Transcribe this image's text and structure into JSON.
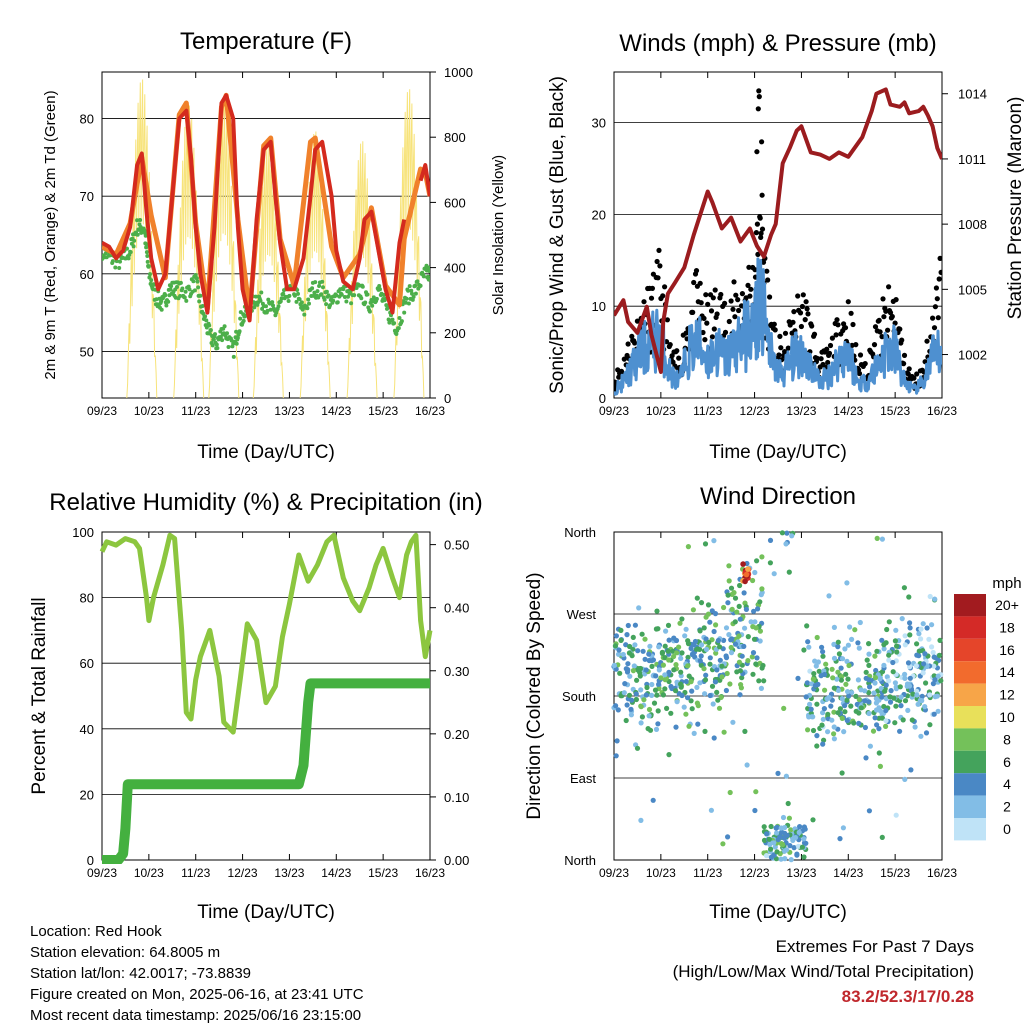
{
  "panels": {
    "temperature": {
      "title": "Temperature (F)",
      "xlabel": "Time (Day/UTC)",
      "ylabel_left": "2m & 9m T (Red, Orange) & 2m Td (Green)",
      "ylabel_right": "Solar Insolation (Yellow)"
    },
    "winds": {
      "title": "Winds (mph) & Pressure (mb)",
      "xlabel": "Time (Day/UTC)",
      "ylabel_left": "Sonic/Prop Wind & Gust (Blue, Black)",
      "ylabel_right": "Station Pressure (Maroon)"
    },
    "humidity": {
      "title": "Relative Humidity (%) & Precipitation (in)",
      "xlabel": "Time (Day/UTC)",
      "ylabel_left": "Percent & Total Rainfall"
    },
    "direction": {
      "title": "Wind Direction",
      "xlabel": "Time (Day/UTC)",
      "ylabel_left": "Direction (Colored By Speed)",
      "legend_title": "mph"
    }
  },
  "footer": {
    "location": "Location: Red Hook",
    "elevation": "Station elevation: 64.8005 m",
    "latlon": "Station lat/lon: 42.0017; -73.8839",
    "created": "Figure created on Mon, 2025-06-16, at 23:41 UTC",
    "recent": "Most recent data timestamp: 2025/06/16 23:15:00",
    "extremes_title": "Extremes For Past 7 Days",
    "extremes_sub": "(High/Low/Max Wind/Total Precipitation)",
    "extremes_values": "83.2/52.3/17/0.28"
  },
  "chart_data": [
    {
      "id": "temperature",
      "type": "line",
      "title": "Temperature (F)",
      "xlabel": "Time (Day/UTC)",
      "ylabel": "2m & 9m T (Red, Orange) & 2m Td (Green)",
      "y2label": "Solar Insolation (Yellow)",
      "x_ticks": [
        "09/23",
        "10/23",
        "11/23",
        "12/23",
        "13/23",
        "14/23",
        "15/23",
        "16/23"
      ],
      "x_range_days": [
        0,
        7
      ],
      "ylim": [
        44,
        86
      ],
      "y_ticks": [
        50,
        60,
        70,
        80
      ],
      "y2lim": [
        0,
        1000
      ],
      "y2_ticks": [
        0,
        200,
        400,
        600,
        800,
        1000
      ],
      "grid": "horizontal",
      "series": [
        {
          "name": "2m T",
          "color": "#d42a1e",
          "x": [
            0,
            0.15,
            0.3,
            0.45,
            0.6,
            0.75,
            0.85,
            0.95,
            1.05,
            1.2,
            1.35,
            1.5,
            1.65,
            1.8,
            1.9,
            2.0,
            2.1,
            2.25,
            2.4,
            2.55,
            2.65,
            2.8,
            2.9,
            3.0,
            3.15,
            3.3,
            3.45,
            3.6,
            3.7,
            3.8,
            3.95,
            4.1,
            4.3,
            4.45,
            4.55,
            4.7,
            4.9,
            5.0,
            5.15,
            5.35,
            5.5,
            5.6,
            5.75,
            5.9,
            6.05,
            6.2,
            6.35,
            6.45,
            6.7,
            6.8,
            6.9,
            7.0
          ],
          "y": [
            64,
            63.5,
            62,
            63,
            66,
            74,
            75.5,
            68,
            62,
            58,
            60,
            70,
            80,
            81,
            75,
            66,
            60,
            55,
            66,
            82,
            83,
            80,
            66,
            58,
            54,
            67,
            76,
            77,
            70,
            64,
            58,
            58,
            62,
            70,
            76,
            77,
            70,
            63,
            59,
            58,
            62,
            67,
            68,
            63,
            58,
            55,
            64,
            67,
            null,
            72,
            74,
            70
          ]
        },
        {
          "name": "9m T",
          "color": "#f0812b",
          "x": [
            0,
            0.3,
            0.6,
            0.85,
            1.05,
            1.35,
            1.65,
            1.8,
            2.0,
            2.25,
            2.55,
            2.65,
            2.9,
            3.15,
            3.45,
            3.6,
            3.8,
            4.1,
            4.45,
            4.55,
            4.9,
            5.15,
            5.5,
            5.75,
            6.05,
            6.35,
            6.45,
            6.8,
            6.9,
            7.0
          ],
          "y": [
            63.5,
            62.5,
            66.5,
            75,
            67.5,
            59.5,
            80.5,
            82,
            66.5,
            55.5,
            81.5,
            83,
            67,
            55,
            76.5,
            77.5,
            64.5,
            58.5,
            77,
            77.5,
            63.5,
            59.5,
            62.5,
            68.5,
            58.5,
            56,
            64.5,
            73.5,
            73,
            70
          ]
        },
        {
          "name": "2m Td",
          "color": "#4caf4a",
          "x": [
            0,
            0.2,
            0.4,
            0.6,
            0.75,
            0.9,
            1.0,
            1.15,
            1.3,
            1.45,
            1.6,
            1.8,
            2.0,
            2.15,
            2.3,
            2.45,
            2.6,
            2.8,
            2.95,
            3.1,
            3.3,
            3.5,
            3.7,
            3.9,
            4.1,
            4.3,
            4.5,
            4.7,
            4.9,
            5.1,
            5.3,
            5.5,
            5.7,
            5.9,
            6.1,
            6.3,
            6.5,
            6.7,
            6.9,
            7.0
          ],
          "y": [
            63,
            62,
            61.5,
            63,
            66,
            66,
            60,
            57,
            56,
            58,
            58,
            57.5,
            59,
            55,
            52,
            51,
            53,
            50,
            54,
            55,
            57,
            56,
            55,
            57,
            58,
            55,
            58,
            58,
            56,
            58,
            57,
            58,
            56,
            58,
            55,
            53,
            57,
            58,
            60,
            60
          ]
        },
        {
          "name": "Solar Insolation",
          "axis": "y2",
          "color": "#f7e37a",
          "peaks": [
            {
              "x": 0.85,
              "y": 980
            },
            {
              "x": 1.85,
              "y": 900
            },
            {
              "x": 2.6,
              "y": 920
            },
            {
              "x": 3.55,
              "y": 800
            },
            {
              "x": 4.55,
              "y": 820
            },
            {
              "x": 5.55,
              "y": 790
            },
            {
              "x": 6.55,
              "y": 950
            }
          ]
        }
      ]
    },
    {
      "id": "winds",
      "type": "line",
      "title": "Winds (mph) & Pressure (mb)",
      "xlabel": "Time (Day/UTC)",
      "ylabel": "Sonic/Prop Wind & Gust (Blue, Black)",
      "y2label": "Station Pressure (Maroon)",
      "x_ticks": [
        "09/23",
        "10/23",
        "11/23",
        "12/23",
        "13/23",
        "14/23",
        "15/23",
        "16/23"
      ],
      "x_range_days": [
        0,
        7
      ],
      "ylim": [
        0,
        35.5
      ],
      "y_ticks": [
        0,
        10,
        20,
        30
      ],
      "y2lim": [
        1000.0,
        1015.0
      ],
      "y2_ticks": [
        1002,
        1005,
        1008,
        1011,
        1014
      ],
      "grid": "horizontal",
      "series": [
        {
          "name": "Station Pressure",
          "axis": "y2",
          "color": "#9b1c1f",
          "x": [
            0,
            0.2,
            0.3,
            0.5,
            0.7,
            0.8,
            1.0,
            1.05,
            1.15,
            1.3,
            1.5,
            1.7,
            2.0,
            2.1,
            2.3,
            2.5,
            2.7,
            2.9,
            3.05,
            3.2,
            3.35,
            3.45,
            3.6,
            3.75,
            3.9,
            4.0,
            4.2,
            4.4,
            4.6,
            4.8,
            5.0,
            5.1,
            5.3,
            5.5,
            5.6,
            5.8,
            5.9,
            6.1,
            6.2,
            6.3,
            6.5,
            6.6,
            6.7,
            6.8,
            6.9,
            7.0
          ],
          "y": [
            1003.8,
            1004.5,
            1003.5,
            1003.0,
            1004.2,
            1002.9,
            1001.2,
            1003.5,
            1004.8,
            1005.3,
            1006.0,
            1007.5,
            1009.5,
            1009.0,
            1007.8,
            1008.3,
            1007.2,
            1007.8,
            1007.0,
            1006.5,
            1007.5,
            1008.0,
            1010.8,
            1011.5,
            1012.3,
            1012.5,
            1011.3,
            1011.2,
            1011.0,
            1011.3,
            1011.1,
            1011.4,
            1012.0,
            1013.2,
            1014.0,
            1014.2,
            1013.5,
            1013.4,
            1013.6,
            1013.1,
            1013.2,
            1013.4,
            1013.0,
            1012.5,
            1011.5,
            1011.0
          ]
        },
        {
          "name": "Sonic Wind",
          "color": "#4e90d0",
          "x": [
            0,
            0.2,
            0.4,
            0.6,
            0.8,
            1.0,
            1.2,
            1.4,
            1.6,
            1.8,
            2.0,
            2.2,
            2.4,
            2.6,
            2.8,
            3.0,
            3.1,
            3.2,
            3.4,
            3.6,
            3.8,
            4.0,
            4.2,
            4.4,
            4.6,
            4.8,
            5.0,
            5.2,
            5.4,
            5.6,
            5.8,
            6.0,
            6.2,
            6.4,
            6.6,
            6.8,
            7.0
          ],
          "y": [
            1,
            2,
            4,
            6,
            7,
            8,
            3,
            2,
            6,
            7,
            5,
            6,
            5,
            7,
            8,
            9,
            13,
            10,
            4,
            3,
            5,
            6,
            4,
            2,
            3,
            5,
            6,
            2,
            2,
            4,
            6,
            6,
            2,
            1,
            2,
            5,
            6
          ]
        },
        {
          "name": "Gust",
          "color": "#000000",
          "x": [
            0,
            0.2,
            0.4,
            0.6,
            0.8,
            1.0,
            1.2,
            1.4,
            1.6,
            1.8,
            2.0,
            2.2,
            2.4,
            2.6,
            2.8,
            3.0,
            3.1,
            3.2,
            3.4,
            3.6,
            3.8,
            4.0,
            4.2,
            4.4,
            4.6,
            4.8,
            5.0,
            5.2,
            5.4,
            5.6,
            5.8,
            6.0,
            6.2,
            6.4,
            6.6,
            6.8,
            7.0
          ],
          "y": [
            2,
            4,
            7,
            9,
            11,
            14,
            5,
            4,
            10,
            12,
            9,
            11,
            9,
            11,
            13,
            14,
            33,
            16,
            7,
            5,
            8,
            11,
            8,
            4,
            5,
            8,
            10,
            4,
            4,
            7,
            10,
            11,
            4,
            2,
            3,
            9,
            14
          ]
        }
      ]
    },
    {
      "id": "humidity",
      "type": "line",
      "title": "Relative Humidity (%) & Precipitation (in)",
      "xlabel": "Time (Day/UTC)",
      "ylabel": "Percent & Total Rainfall",
      "x_ticks": [
        "09/23",
        "10/23",
        "11/23",
        "12/23",
        "13/23",
        "14/23",
        "15/23",
        "16/23"
      ],
      "x_range_days": [
        0,
        7
      ],
      "ylim": [
        0,
        100
      ],
      "y_ticks": [
        0,
        20,
        40,
        60,
        80,
        100
      ],
      "y2lim": [
        0,
        0.52
      ],
      "y2_ticks": [
        "0.00",
        "0.10",
        "0.20",
        "0.30",
        "0.40",
        "0.50"
      ],
      "grid": "horizontal",
      "series": [
        {
          "name": "Relative Humidity",
          "color": "#8cc63f",
          "x": [
            0,
            0.1,
            0.3,
            0.5,
            0.7,
            0.8,
            0.95,
            1.0,
            1.1,
            1.3,
            1.45,
            1.55,
            1.7,
            1.8,
            1.9,
            2.0,
            2.1,
            2.3,
            2.5,
            2.6,
            2.8,
            2.95,
            3.1,
            3.3,
            3.5,
            3.7,
            3.85,
            4.0,
            4.2,
            4.4,
            4.6,
            4.8,
            4.95,
            5.15,
            5.35,
            5.5,
            5.7,
            5.85,
            6.0,
            6.2,
            6.35,
            6.5,
            6.6,
            6.7,
            6.8,
            6.9,
            7.0
          ],
          "y": [
            94,
            97,
            96,
            98,
            97,
            95,
            80,
            73,
            80,
            90,
            99,
            98,
            70,
            45,
            43,
            55,
            62,
            70,
            56,
            42,
            39,
            55,
            72,
            67,
            48,
            53,
            68,
            78,
            93,
            85,
            90,
            97,
            99,
            86,
            79,
            76,
            83,
            90,
            95,
            86,
            80,
            93,
            97,
            99,
            73,
            62,
            70
          ]
        },
        {
          "name": "Total Precipitation",
          "axis": "y2",
          "color": "#44b03f",
          "x": [
            0,
            0.35,
            0.45,
            0.5,
            0.55,
            4.2,
            4.3,
            4.4,
            4.45,
            7.0
          ],
          "y": [
            0,
            0,
            0.01,
            0.05,
            0.12,
            0.12,
            0.15,
            0.25,
            0.28,
            0.28
          ]
        }
      ]
    },
    {
      "id": "direction",
      "type": "scatter",
      "title": "Wind Direction",
      "xlabel": "Time (Day/UTC)",
      "ylabel": "Direction (Colored By Speed)",
      "x_ticks": [
        "09/23",
        "10/23",
        "11/23",
        "12/23",
        "13/23",
        "14/23",
        "15/23",
        "16/23"
      ],
      "x_range_days": [
        0,
        7
      ],
      "y_ticks": [
        "North",
        "East",
        "South",
        "West",
        "North"
      ],
      "ylim": [
        0,
        360
      ],
      "grid": "horizontal",
      "legend": {
        "title": "mph",
        "placement": "right",
        "levels": [
          "20+",
          "18",
          "16",
          "14",
          "12",
          "10",
          "8",
          "6",
          "4",
          "2",
          "0"
        ],
        "colors": [
          "#a21b1f",
          "#d42a27",
          "#e5452a",
          "#f26b2d",
          "#f7a548",
          "#e8e05a",
          "#74c15a",
          "#44a35c",
          "#4a88c5",
          "#82bde6",
          "#bfe3f7"
        ]
      },
      "clusters": [
        {
          "x_start": 0.0,
          "x_end": 1.0,
          "dir_center": 200,
          "spread": 60,
          "speed": 4
        },
        {
          "x_start": 1.0,
          "x_end": 2.4,
          "dir_center": 210,
          "spread": 55,
          "speed": 5
        },
        {
          "x_start": 2.4,
          "x_end": 3.2,
          "dir_center": 250,
          "spread": 70,
          "speed": 5
        },
        {
          "x_start": 3.2,
          "x_end": 4.1,
          "dir_center": 20,
          "spread": 25,
          "speed": 4
        },
        {
          "x_start": 4.1,
          "x_end": 5.8,
          "dir_center": 185,
          "spread": 60,
          "speed": 4
        },
        {
          "x_start": 5.8,
          "x_end": 7.0,
          "dir_center": 200,
          "spread": 55,
          "speed": 3
        }
      ]
    }
  ]
}
